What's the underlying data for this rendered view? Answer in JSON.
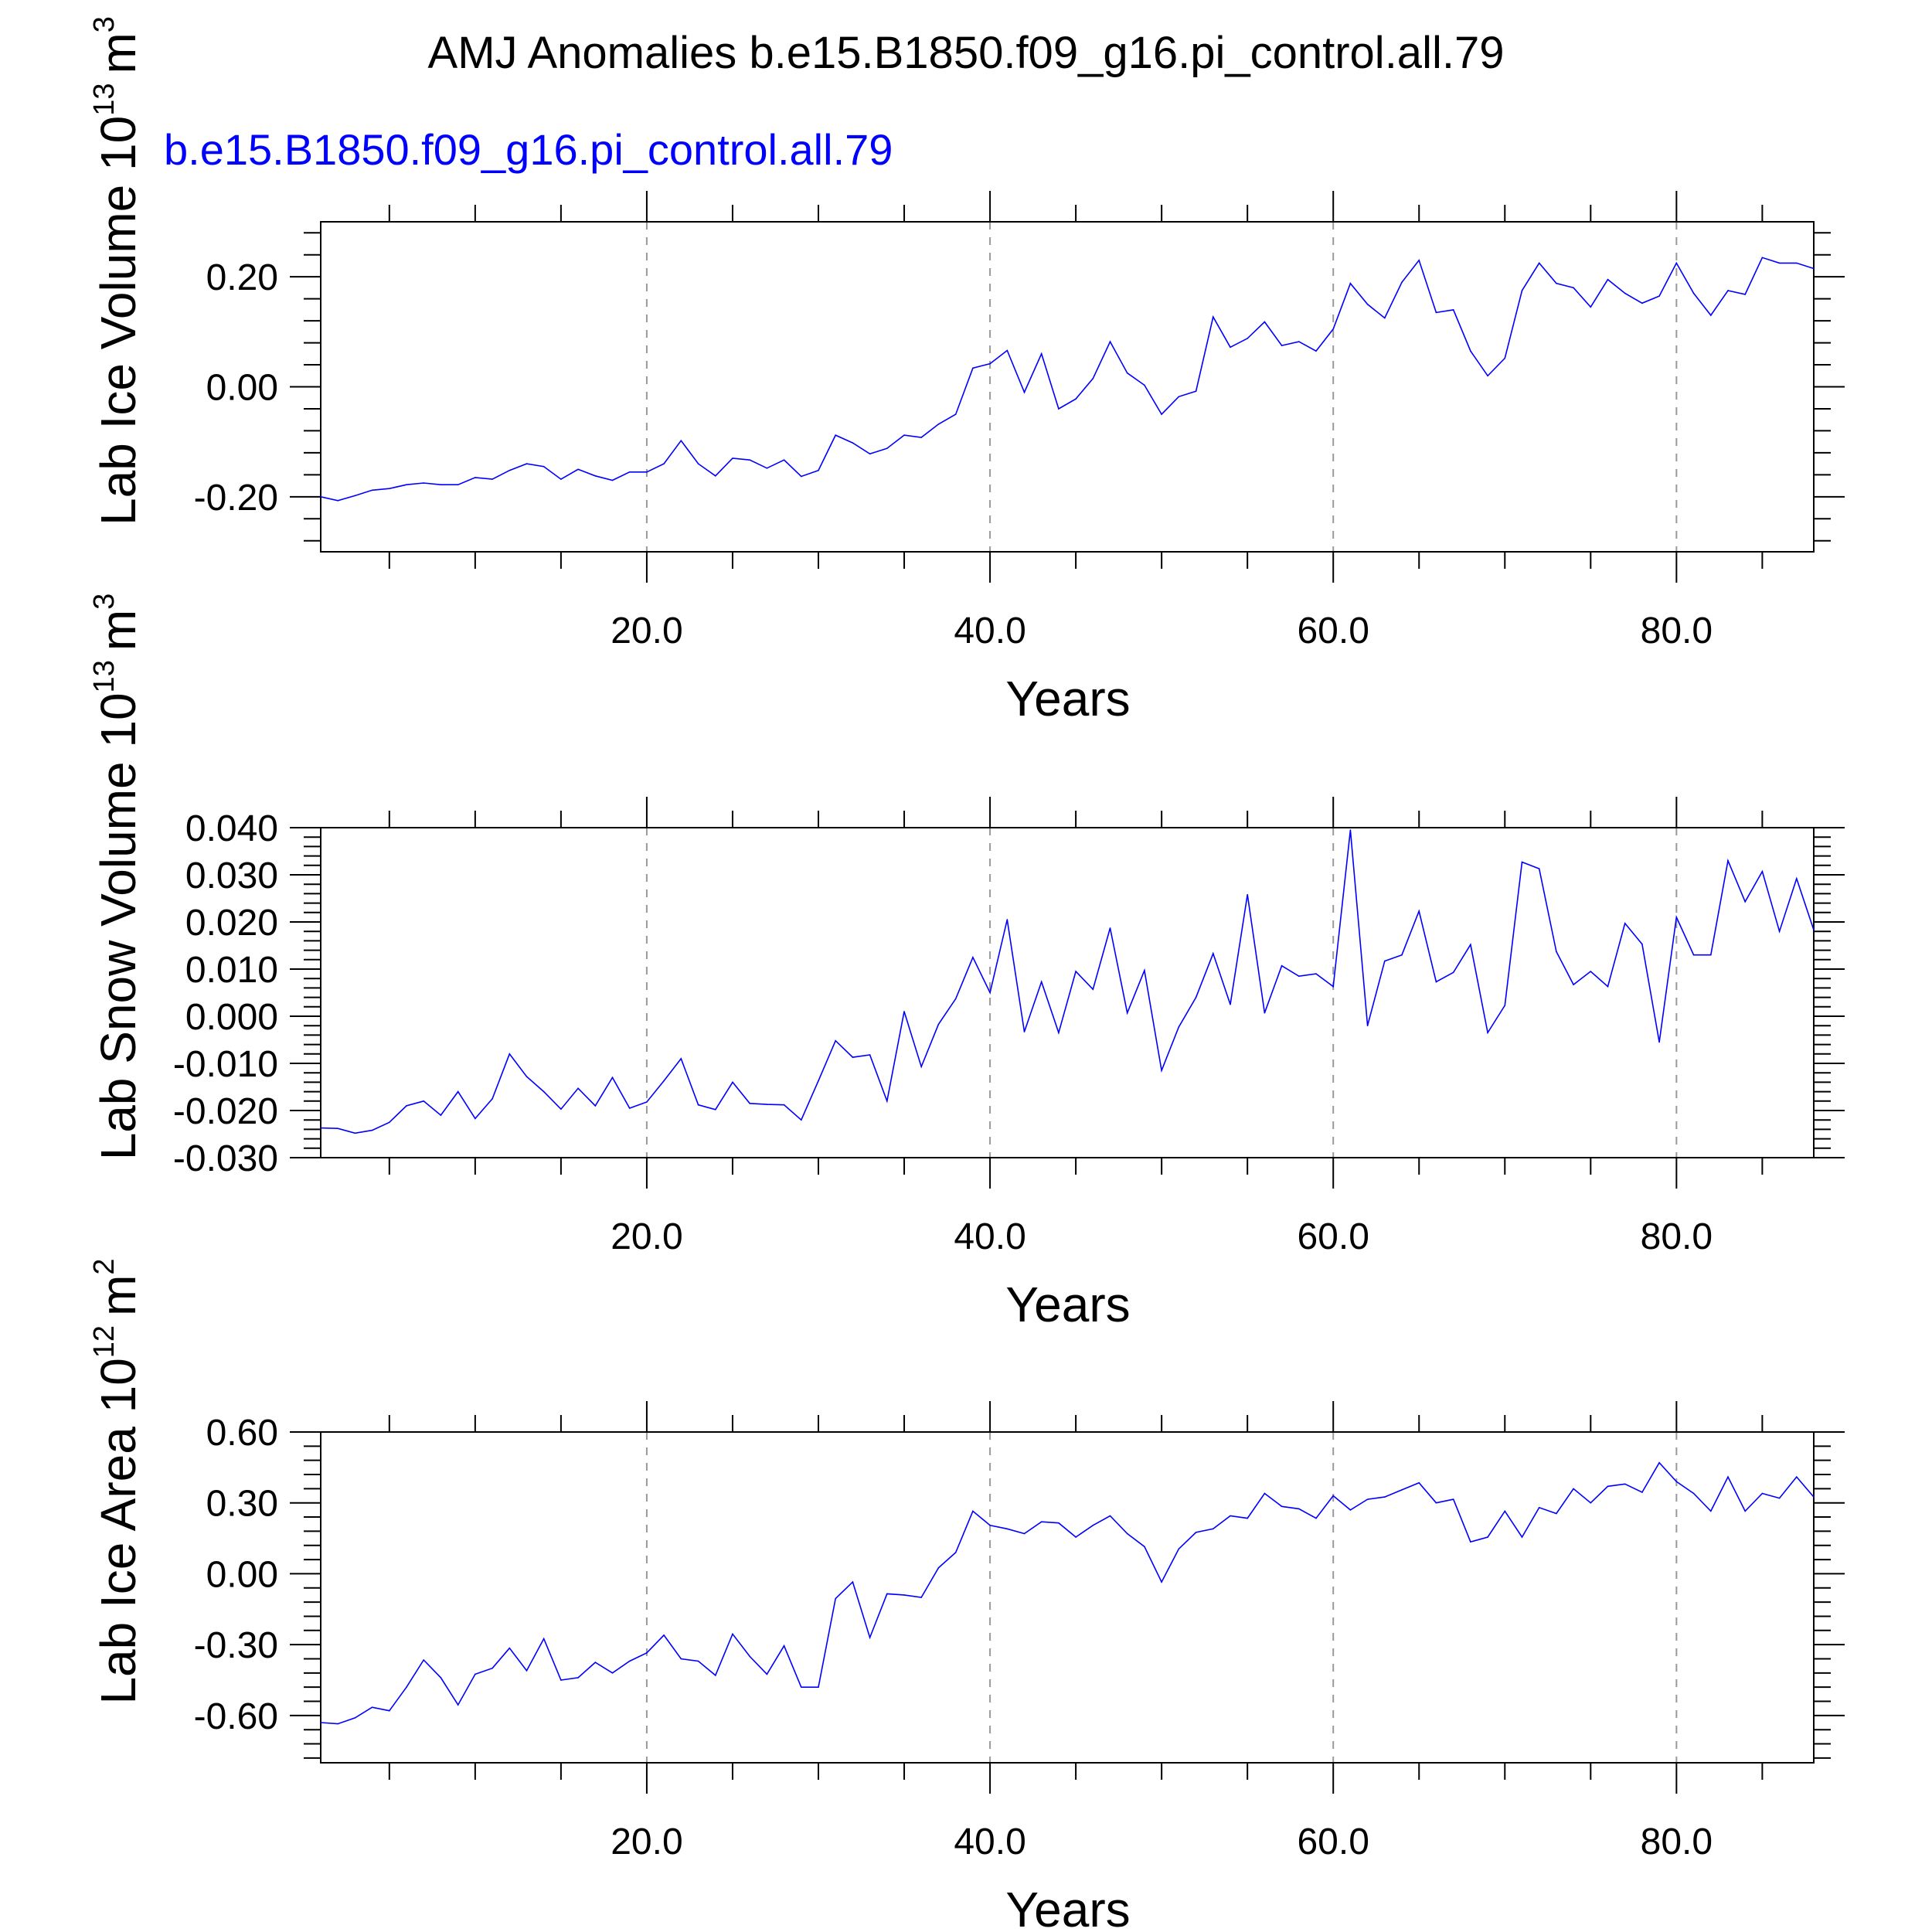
{
  "title": "AMJ Anomalies b.e15.B1850.f09_g16.pi_control.all.79",
  "legend_label": "b.e15.B1850.f09_g16.pi_control.all.79",
  "colors": {
    "series": "#0000ff",
    "text": "#000000",
    "legend": "#0000ff",
    "grid": "#999999"
  },
  "chart_data": [
    {
      "type": "line",
      "ylabel": "Lab Ice Volume 10",
      "ylabel_exp": "13",
      "ylabel_unit": "m",
      "ylabel_unit_exp": "3",
      "xlabel": "Years",
      "xlim": [
        1,
        88
      ],
      "ylim": [
        -0.3,
        0.3
      ],
      "xticks": [
        20,
        40,
        60,
        80
      ],
      "xticklabels": [
        "20.0",
        "40.0",
        "60.0",
        "80.0"
      ],
      "yticks": [
        -0.2,
        0.0,
        0.2
      ],
      "yticklabels": [
        "-0.20",
        "0.00",
        "0.20"
      ],
      "grid": "vertical dashed at major x ticks",
      "series": [
        {
          "values": [
            -0.2,
            -0.207,
            -0.198,
            -0.188,
            -0.185,
            -0.178,
            -0.175,
            -0.178,
            -0.178,
            -0.165,
            -0.168,
            -0.152,
            -0.14,
            -0.145,
            -0.168,
            -0.15,
            -0.162,
            -0.17,
            -0.155,
            -0.155,
            -0.14,
            -0.098,
            -0.14,
            -0.162,
            -0.13,
            -0.133,
            -0.148,
            -0.133,
            -0.163,
            -0.152,
            -0.088,
            -0.102,
            -0.122,
            -0.112,
            -0.088,
            -0.092,
            -0.068,
            -0.05,
            0.034,
            0.042,
            0.066,
            -0.01,
            0.06,
            -0.04,
            -0.022,
            0.015,
            0.082,
            0.025,
            0.003,
            -0.05,
            -0.018,
            -0.008,
            0.127,
            0.072,
            0.088,
            0.118,
            0.075,
            0.082,
            0.065,
            0.105,
            0.188,
            0.15,
            0.125,
            0.19,
            0.23,
            0.135,
            0.14,
            0.065,
            0.02,
            0.052,
            0.175,
            0.225,
            0.188,
            0.18,
            0.145,
            0.195,
            0.17,
            0.152,
            0.165,
            0.225,
            0.17,
            0.13,
            0.175,
            0.168,
            0.235,
            0.225,
            0.225,
            0.215
          ]
        }
      ]
    },
    {
      "type": "line",
      "ylabel": "Lab Snow Volume 10",
      "ylabel_exp": "13",
      "ylabel_unit": "m",
      "ylabel_unit_exp": "3",
      "xlabel": "Years",
      "xlim": [
        1,
        88
      ],
      "ylim": [
        -0.03,
        0.04
      ],
      "xticks": [
        20,
        40,
        60,
        80
      ],
      "xticklabels": [
        "20.0",
        "40.0",
        "60.0",
        "80.0"
      ],
      "yticks": [
        -0.03,
        -0.02,
        -0.01,
        0.0,
        0.01,
        0.02,
        0.03,
        0.04
      ],
      "yticklabels": [
        "-0.030",
        "-0.020",
        "-0.010",
        "0.000",
        "0.010",
        "0.020",
        "0.030",
        "0.040"
      ],
      "grid": "vertical dashed at major x ticks",
      "series": [
        {
          "values": [
            -0.0237,
            -0.0238,
            -0.0248,
            -0.0242,
            -0.0225,
            -0.019,
            -0.018,
            -0.021,
            -0.016,
            -0.0217,
            -0.0175,
            -0.008,
            -0.0128,
            -0.016,
            -0.0197,
            -0.0153,
            -0.019,
            -0.013,
            -0.0195,
            -0.0182,
            -0.0137,
            -0.009,
            -0.0188,
            -0.0198,
            -0.014,
            -0.0185,
            -0.0187,
            -0.0188,
            -0.022,
            -0.0137,
            -0.0052,
            -0.0087,
            -0.0082,
            -0.018,
            0.001,
            -0.0107,
            -0.0017,
            0.0037,
            0.0125,
            0.005,
            0.0205,
            -0.0033,
            0.0073,
            -0.0035,
            0.0095,
            0.0057,
            0.0187,
            0.0007,
            0.0097,
            -0.0115,
            -0.0023,
            0.004,
            0.0133,
            0.0025,
            0.0258,
            0.0007,
            0.0107,
            0.0085,
            0.009,
            0.0063,
            0.0395,
            -0.002,
            0.0117,
            0.013,
            0.0223,
            0.0073,
            0.0093,
            0.0152,
            -0.0035,
            0.0023,
            0.0327,
            0.0313,
            0.0137,
            0.0067,
            0.0095,
            0.0063,
            0.0197,
            0.0153,
            -0.0055,
            0.021,
            0.013,
            0.013,
            0.033,
            0.0243,
            0.0307,
            0.018,
            0.0292,
            0.0183
          ]
        }
      ]
    },
    {
      "type": "line",
      "ylabel": "Lab Ice Area 10",
      "ylabel_exp": "12",
      "ylabel_unit": "m",
      "ylabel_unit_exp": "2",
      "xlabel": "Years",
      "xlim": [
        1,
        88
      ],
      "ylim": [
        -0.8,
        0.6
      ],
      "xticks": [
        20,
        40,
        60,
        80
      ],
      "xticklabels": [
        "20.0",
        "40.0",
        "60.0",
        "80.0"
      ],
      "yticks": [
        -0.6,
        -0.3,
        0.0,
        0.3,
        0.6
      ],
      "yticklabels": [
        "-0.60",
        "-0.30",
        "0.00",
        "0.30",
        "0.60"
      ],
      "grid": "vertical dashed at major x ticks",
      "series": [
        {
          "values": [
            -0.63,
            -0.635,
            -0.61,
            -0.565,
            -0.58,
            -0.48,
            -0.365,
            -0.44,
            -0.555,
            -0.425,
            -0.4,
            -0.315,
            -0.41,
            -0.275,
            -0.45,
            -0.44,
            -0.375,
            -0.42,
            -0.37,
            -0.335,
            -0.26,
            -0.36,
            -0.37,
            -0.43,
            -0.255,
            -0.35,
            -0.425,
            -0.305,
            -0.48,
            -0.48,
            -0.105,
            -0.035,
            -0.27,
            -0.085,
            -0.09,
            -0.1,
            0.025,
            0.09,
            0.265,
            0.205,
            0.19,
            0.17,
            0.22,
            0.215,
            0.155,
            0.205,
            0.245,
            0.17,
            0.115,
            -0.035,
            0.105,
            0.175,
            0.19,
            0.245,
            0.235,
            0.34,
            0.285,
            0.275,
            0.235,
            0.33,
            0.27,
            0.315,
            0.325,
            0.355,
            0.385,
            0.3,
            0.315,
            0.135,
            0.155,
            0.265,
            0.155,
            0.28,
            0.255,
            0.36,
            0.3,
            0.37,
            0.38,
            0.345,
            0.47,
            0.39,
            0.34,
            0.265,
            0.41,
            0.265,
            0.34,
            0.32,
            0.41,
            0.325
          ]
        }
      ]
    }
  ]
}
